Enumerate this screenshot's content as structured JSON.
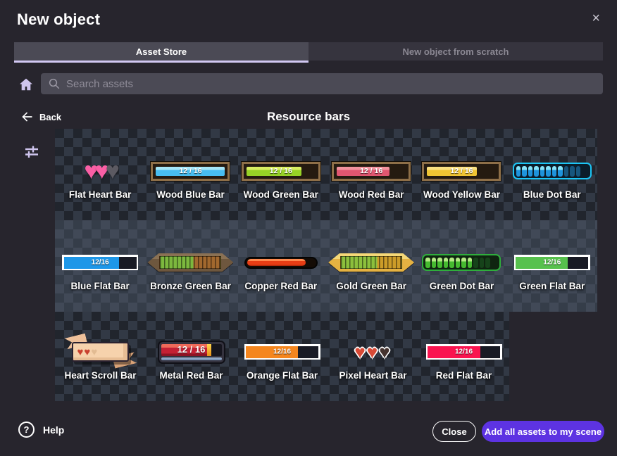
{
  "window": {
    "title": "New object",
    "close_icon": "×"
  },
  "tabs": [
    {
      "label": "Asset Store",
      "active": true
    },
    {
      "label": "New object from scratch",
      "active": false
    }
  ],
  "search": {
    "placeholder": "Search assets",
    "icon": "magnifier"
  },
  "nav": {
    "back_label": "Back",
    "section_title": "Resource bars",
    "home_icon": "home",
    "filter_icon": "tune-sliders"
  },
  "footer": {
    "help_icon": "?",
    "help_label": "Help",
    "close_label": "Close",
    "add_all_label": "Add all assets to my scene"
  },
  "colors": {
    "dialog_bg": "#27252d",
    "tab_underline": "#d2c8f3",
    "accent_purple": "#5d33e2",
    "icon_lavender": "#cfc5ee"
  },
  "assets": {
    "rows": [
      {
        "tiles": [
          {
            "name": "Flat Heart Bar",
            "type": "hearts",
            "style": "flat",
            "heart_colors": [
              "#fa5fa5",
              "#fa5fa5",
              "#5c5a62"
            ]
          },
          {
            "name": "Wood Blue Bar",
            "type": "wood",
            "value": "12 / 16",
            "pct": 100,
            "fill_top": "#a5e6f8",
            "fill": "#48bdf0"
          },
          {
            "name": "Wood Green Bar",
            "type": "wood",
            "value": "12 / 16",
            "pct": 80,
            "fill_top": "#d9ee62",
            "fill": "#97d226"
          },
          {
            "name": "Wood Red Bar",
            "type": "wood",
            "value": "12 / 16",
            "pct": 76,
            "fill_top": "#f2929e",
            "fill": "#e05670"
          },
          {
            "name": "Wood Yellow Bar",
            "type": "wood",
            "value": "12 / 16",
            "pct": 72,
            "fill_top": "#fae081",
            "fill": "#f0c433"
          },
          {
            "name": "Blue Dot Bar",
            "type": "dot",
            "count": 11,
            "filled": 8,
            "border": "#1cc6f6",
            "track": "#0b1d2a",
            "dot_top": "#86e4fa",
            "dot_main": "#1e93dc",
            "dot_off": "#17567e"
          }
        ]
      },
      {
        "tiles": [
          {
            "name": "Blue Flat Bar",
            "type": "flat",
            "value": "12/16",
            "pct": 76,
            "fill": "#1e97e8"
          },
          {
            "name": "Bronze Green Bar",
            "type": "arrow",
            "pct": 55,
            "frame": "#6e573e",
            "frame_hi": "#8a7154",
            "stripe_a": "#7cb83e",
            "stripe_b": "#a2682e"
          },
          {
            "name": "Copper Red Bar",
            "type": "copper"
          },
          {
            "name": "Gold Green Bar",
            "type": "arrow",
            "pct": 60,
            "frame": "#e5b242",
            "frame_hi": "#f5d878",
            "stripe_a": "#8cc03c",
            "stripe_b": "#cc9c28"
          },
          {
            "name": "Green Dot Bar",
            "type": "dot",
            "count": 11,
            "filled": 8,
            "border": "#2fae3c",
            "track": "#0f2410",
            "dot_top": "#b4ec84",
            "dot_main": "#46ba30",
            "dot_off": "#16431a"
          },
          {
            "name": "Green Flat Bar",
            "type": "flat",
            "value": "12/16",
            "pct": 72,
            "fill": "#57c14d"
          }
        ]
      },
      {
        "tiles": [
          {
            "name": "Heart Scroll Bar",
            "type": "scroll",
            "heart_colors": [
              "#c9402e",
              "#c9402e",
              "#e2bb92"
            ]
          },
          {
            "name": "Metal Red Bar",
            "type": "metal",
            "value": "12 / 16"
          },
          {
            "name": "Orange Flat Bar",
            "type": "flat",
            "value": "12/16",
            "pct": 72,
            "fill": "#f5861e"
          },
          {
            "name": "Pixel Heart Bar",
            "type": "hearts",
            "style": "pixel",
            "heart_colors": [
              "#d84a36",
              "#d84a36",
              "#45332f"
            ]
          },
          {
            "name": "Red Flat Bar",
            "type": "flat",
            "value": "12/16",
            "pct": 73,
            "fill": "#fa1450"
          }
        ]
      }
    ]
  }
}
